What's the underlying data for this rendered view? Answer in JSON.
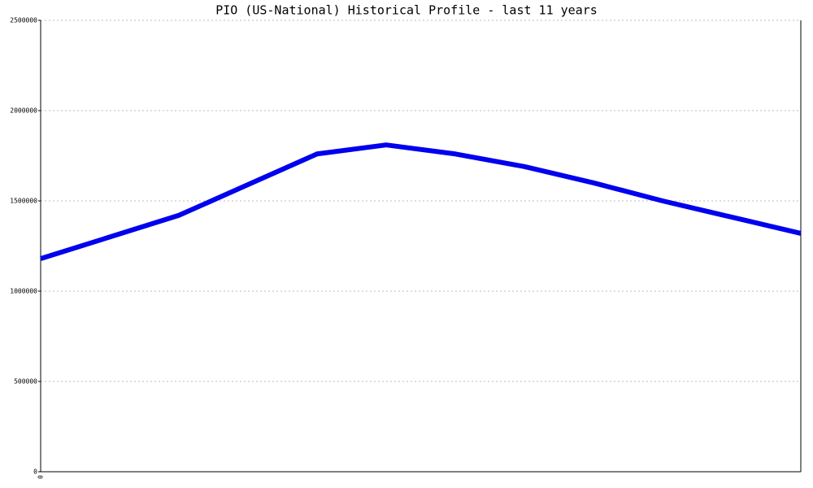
{
  "chart_data": {
    "type": "line",
    "title": "PIO (US-National) Historical Profile - last 11 years",
    "categories": [
      "0",
      null,
      null,
      null,
      null,
      null,
      null,
      null,
      null,
      null,
      null,
      null
    ],
    "series": [
      {
        "color": "#0000ee",
        "values": [
          1180000,
          1300000,
          1420000,
          1590000,
          1760000,
          1810000,
          1760000,
          1690000,
          1600000,
          1500000,
          1410000,
          1320000
        ]
      }
    ],
    "ylim": [
      0,
      2500000
    ],
    "yticks": [
      0,
      500000,
      1000000,
      1500000,
      2000000,
      2500000
    ],
    "grid": true
  }
}
